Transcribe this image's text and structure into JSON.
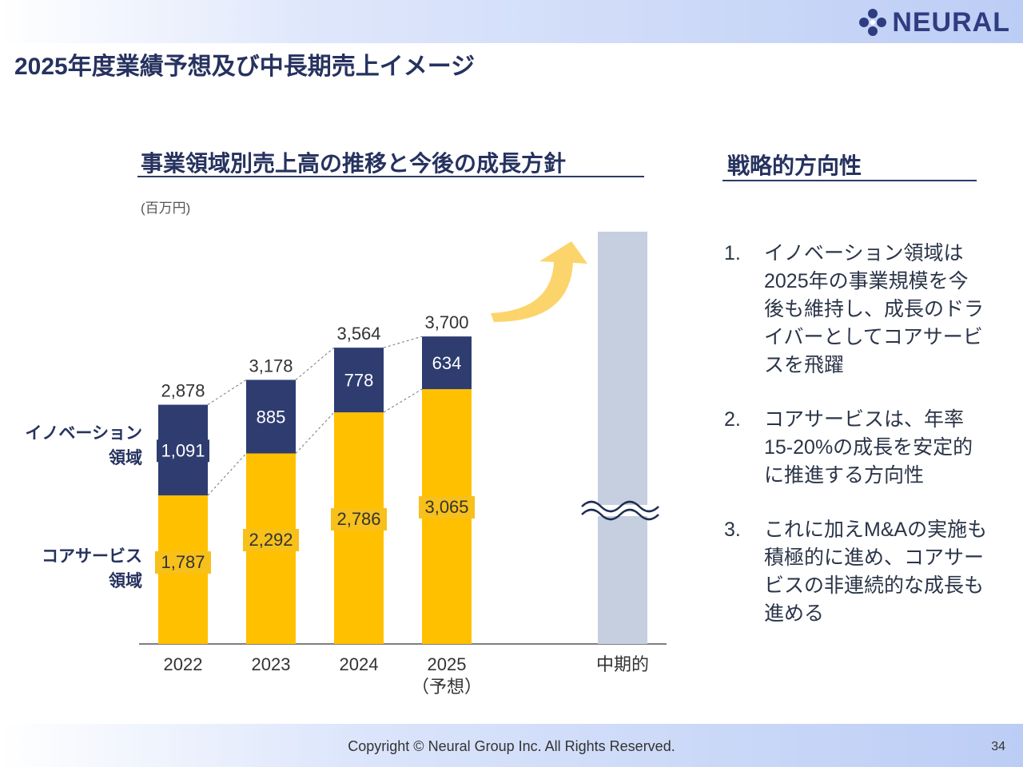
{
  "page": {
    "title": "2025年度業績予想及び中長期売上イメージ",
    "logo": "NEURAL",
    "copyright": "Copyright © Neural Group Inc. All Rights Reserved.",
    "page_number": "34"
  },
  "left_section": {
    "title": "事業領域別売上高の推移と今後の成長方針",
    "unit": "(百万円)"
  },
  "right_section": {
    "title": "戦略的方向性",
    "items": [
      {
        "num": "1.",
        "text": "イノベーション領域は2025年の事業規模を今後も維持し、成長のドライバーとしてコアサービスを飛躍"
      },
      {
        "num": "2.",
        "text": "コアサービスは、年率15-20%の成長を安定的に推進する方向性"
      },
      {
        "num": "3.",
        "text": "これに加えM&Aの実施も積極的に進め、コアサービスの非連続的な成長も進める"
      }
    ]
  },
  "chart_data": {
    "type": "bar",
    "stacked": true,
    "categories": [
      "2022",
      "2023",
      "2024",
      "2025\n（予想）",
      "中期的"
    ],
    "series": [
      {
        "name": "コアサービス\n領域",
        "color": "#ffc000",
        "values": [
          1787,
          2292,
          2786,
          3065,
          null
        ]
      },
      {
        "name": "イノベーション\n領域",
        "color": "#2e3c70",
        "values": [
          1091,
          885,
          778,
          634,
          null
        ]
      }
    ],
    "totals": [
      2878,
      3178,
      3564,
      3700,
      null
    ],
    "total_labels": [
      "2,878",
      "3,178",
      "3,564",
      "3,700"
    ],
    "value_labels": {
      "core": [
        "1,787",
        "2,292",
        "2,786",
        "3,065"
      ],
      "innovation": [
        "1,091",
        "885",
        "778",
        "634"
      ]
    },
    "midterm_bar_color": "#c5cfe0",
    "midterm_note": "axis break (value not shown)",
    "arrow_color": "#fbd56b",
    "ylabel": "",
    "grid": false,
    "legend": "left"
  }
}
